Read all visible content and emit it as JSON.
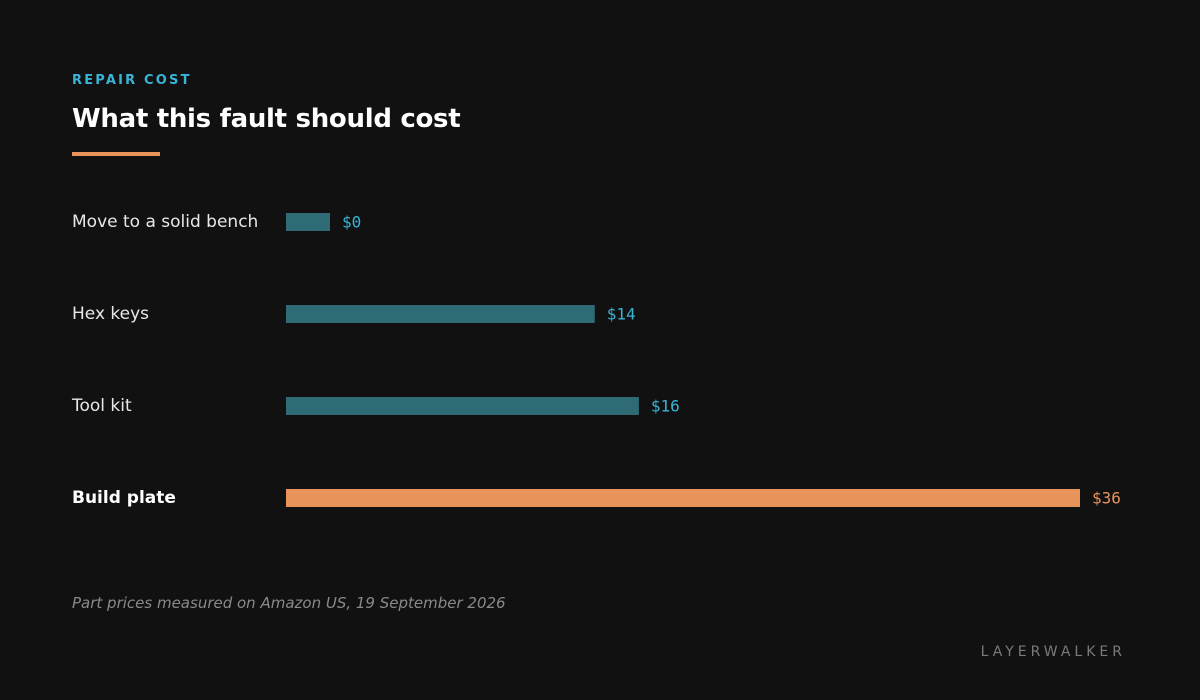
{
  "header": {
    "eyebrow": "REPAIR COST",
    "title": "What this fault should cost"
  },
  "footer": {
    "note": "Part prices measured on Amazon US, 19 September 2026",
    "brand": "LAYERWALKER"
  },
  "colors": {
    "background": "#111111",
    "bar": "#2f6b75",
    "value_text": "#3ab4d6",
    "highlight": "#e8935a",
    "label": "#e8e8e8",
    "label_highlight": "#ffffff"
  },
  "chart_data": {
    "type": "bar",
    "orientation": "horizontal",
    "title": "What this fault should cost",
    "xlabel": "",
    "ylabel": "",
    "categories": [
      "Move to a solid bench",
      "Hex keys",
      "Tool kit",
      "Build plate"
    ],
    "values": [
      0,
      14,
      16,
      36
    ],
    "value_labels": [
      "$0",
      "$14",
      "$16",
      "$36"
    ],
    "highlighted": [
      "Build plate"
    ],
    "grid": false
  }
}
